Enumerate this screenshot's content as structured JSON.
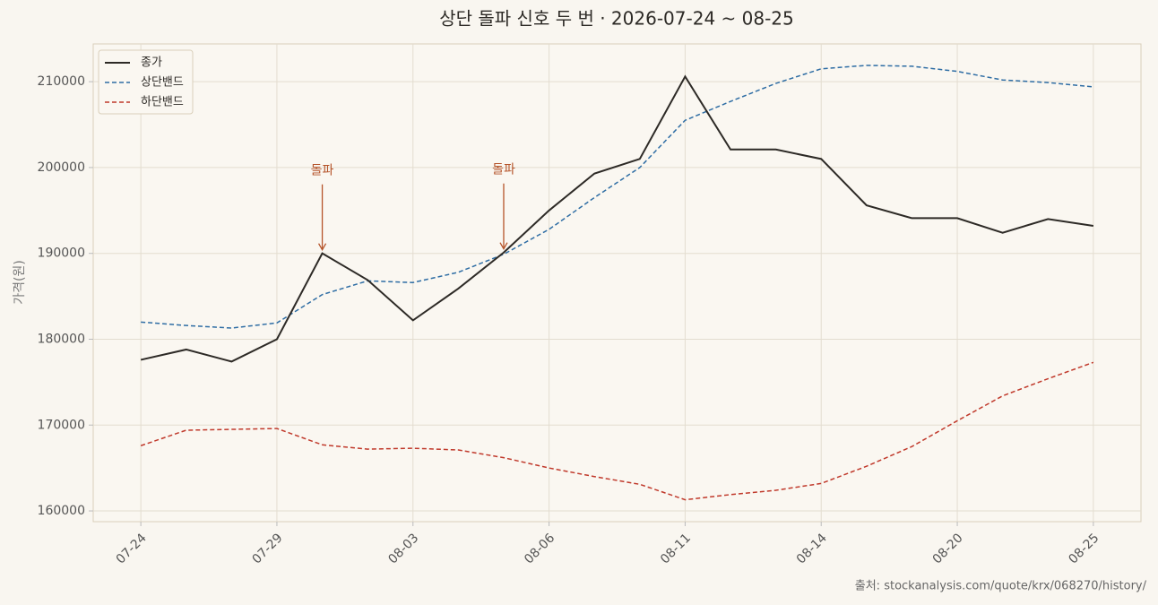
{
  "chart_data": {
    "type": "line",
    "title": "상단 돌파 신호 두 번 · 2026-07-24 ~ 08-25",
    "y_label": "가격(원)",
    "source": "출처: stockanalysis.com/quote/krx/068270/history/",
    "categories": [
      "07-24",
      null,
      null,
      "07-29",
      null,
      null,
      "08-03",
      null,
      null,
      "08-06",
      null,
      null,
      "08-11",
      null,
      null,
      "08-14",
      null,
      null,
      "08-20",
      null,
      null,
      "08-25"
    ],
    "series": [
      {
        "name": "종가",
        "color": "#2d2a26",
        "style": "solid",
        "values": [
          177600,
          178800,
          177400,
          180000,
          190000,
          186900,
          182200,
          185900,
          190100,
          195000,
          199300,
          201000,
          210600,
          202100,
          202100,
          201000,
          195600,
          194100,
          194100,
          192400,
          194000,
          193200
        ]
      },
      {
        "name": "상단밴드",
        "color": "#2e6da4",
        "style": "dashed",
        "values": [
          182000,
          181600,
          181300,
          181900,
          185200,
          186800,
          186600,
          187800,
          189900,
          192800,
          196500,
          200000,
          205500,
          207700,
          209800,
          211500,
          211900,
          211800,
          211200,
          210200,
          209900,
          209400
        ]
      },
      {
        "name": "하단밴드",
        "color": "#c0392b",
        "style": "dashed",
        "values": [
          167600,
          169400,
          169500,
          169600,
          167700,
          167200,
          167300,
          167100,
          166200,
          165000,
          164000,
          163100,
          161300,
          161900,
          162400,
          163200,
          165200,
          167500,
          170500,
          173400,
          175400,
          177300
        ]
      }
    ],
    "annotation": {
      "text": "돌파",
      "color": "#b5542a"
    },
    "ylim": [
      158750,
      214400
    ],
    "yticks": [
      160000,
      170000,
      180000,
      190000,
      200000,
      210000
    ],
    "grid": true,
    "legend": "upper left"
  }
}
